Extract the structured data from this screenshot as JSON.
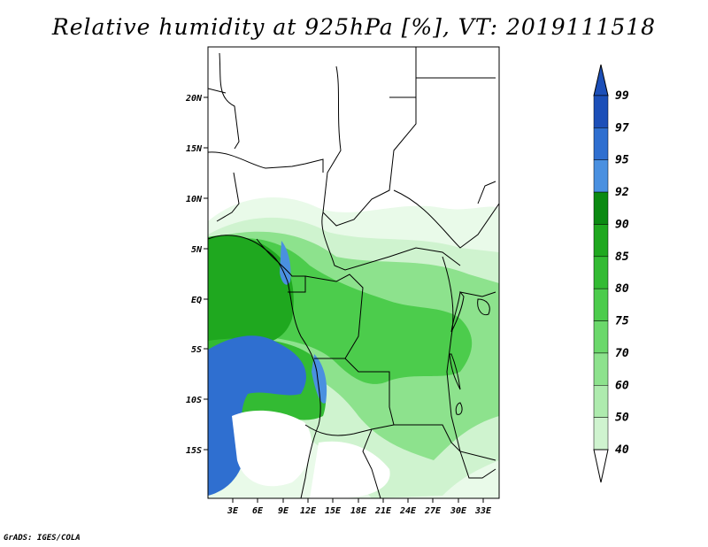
{
  "title": "Relative humidity at 925hPa [%], VT: 2019111518",
  "credit": "GrADS: IGES/COLA",
  "map": {
    "lat_labels": [
      "20N",
      "15N",
      "10N",
      "5N",
      "EQ",
      "5S",
      "10S",
      "15S"
    ],
    "lon_labels": [
      "3E",
      "6E",
      "9E",
      "12E",
      "15E",
      "18E",
      "21E",
      "24E",
      "27E",
      "30E",
      "33E"
    ]
  },
  "colorbar": {
    "labels": [
      "99",
      "97",
      "95",
      "92",
      "90",
      "85",
      "80",
      "75",
      "70",
      "60",
      "50",
      "40"
    ],
    "colors": [
      "#1c4fb8",
      "#2f6fd0",
      "#4a90e0",
      "#0b8a12",
      "#1fa81f",
      "#33bb33",
      "#4ccc4c",
      "#6bd86b",
      "#8de28d",
      "#aeebae",
      "#cff3cf",
      "#e9fae9"
    ]
  }
}
